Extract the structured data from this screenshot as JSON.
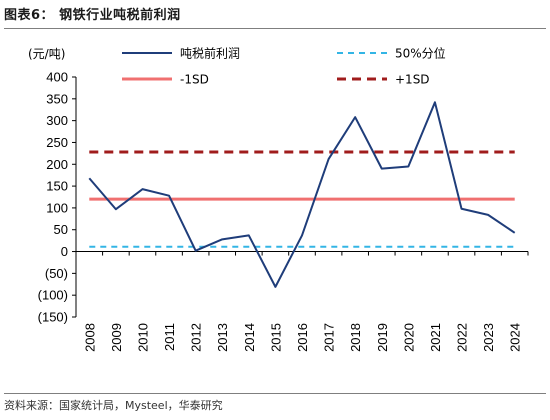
{
  "title": "图表6：   钢铁行业吨税前利润",
  "source": "资料来源：国家统计局，Mysteel，华泰研究",
  "chart_data": {
    "type": "line",
    "unit_label": "(元/吨)",
    "x": [
      "2008",
      "2009",
      "2010",
      "2011",
      "2012",
      "2013",
      "2014",
      "2015",
      "2016",
      "2017",
      "2018",
      "2019",
      "2020",
      "2021",
      "2022",
      "2023",
      "2024"
    ],
    "ylim": [
      -150,
      400
    ],
    "yticks": [
      400,
      350,
      300,
      250,
      200,
      150,
      100,
      50,
      0,
      -50,
      -100,
      -150
    ],
    "ytick_labels": [
      "400",
      "350",
      "300",
      "250",
      "200",
      "150",
      "100",
      "50",
      "0",
      "(50)",
      "(100)",
      "(150)"
    ],
    "legend_placement": "top",
    "grid": false,
    "series": [
      {
        "name": "吨税前利润",
        "color": "#1f3d7a",
        "style": "solid",
        "values": [
          168,
          97,
          143,
          128,
          2,
          28,
          37,
          -81,
          37,
          212,
          308,
          190,
          195,
          342,
          98,
          84,
          43
        ]
      },
      {
        "name": "50%分位",
        "color": "#33b5e5",
        "style": "dashed",
        "values": [
          11,
          11,
          11,
          11,
          11,
          11,
          11,
          11,
          11,
          11,
          11,
          11,
          11,
          11,
          11,
          11,
          11
        ]
      },
      {
        "name": "-1SD",
        "color": "#f07070",
        "style": "solid-thick",
        "values": [
          120,
          120,
          120,
          120,
          120,
          120,
          120,
          120,
          120,
          120,
          120,
          120,
          120,
          120,
          120,
          120,
          120
        ]
      },
      {
        "name": "+1SD",
        "color": "#a01c1c",
        "style": "dashed-thick",
        "values": [
          228,
          228,
          228,
          228,
          228,
          228,
          228,
          228,
          228,
          228,
          228,
          228,
          228,
          228,
          228,
          228,
          228
        ]
      }
    ]
  }
}
